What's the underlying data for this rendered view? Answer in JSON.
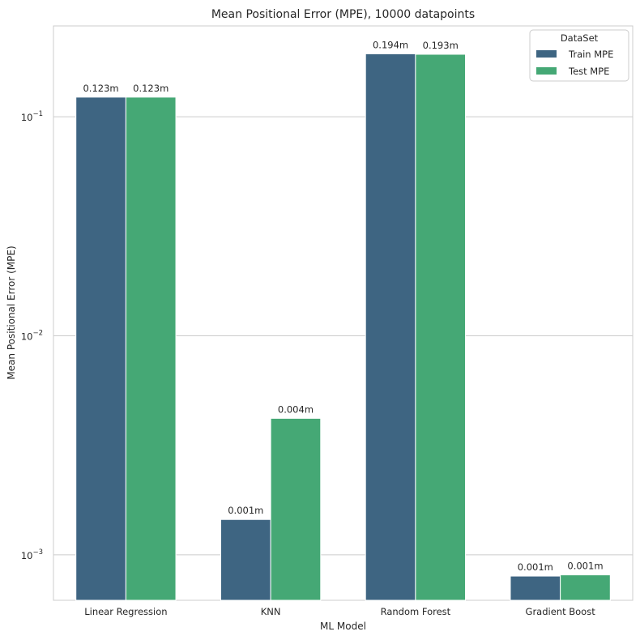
{
  "chart_data": {
    "type": "bar",
    "title": "Mean Positional Error (MPE), 10000 datapoints",
    "xlabel": "ML Model",
    "ylabel": "Mean Positional Error (MPE)",
    "categories": [
      "Linear Regression",
      "KNN",
      "Random Forest",
      "Gradient Boost"
    ],
    "series": [
      {
        "name": "Train MPE",
        "color": "#3e6582",
        "values": [
          0.123,
          0.00145,
          0.194,
          0.0008
        ],
        "labels": [
          "0.123m",
          "0.001m",
          "0.194m",
          "0.001m"
        ]
      },
      {
        "name": "Test MPE",
        "color": "#45a875",
        "values": [
          0.123,
          0.0042,
          0.193,
          0.00081
        ],
        "labels": [
          "0.123m",
          "0.004m",
          "0.193m",
          "0.001m"
        ]
      }
    ],
    "yscale": "log",
    "ylim": [
      0.00062,
      0.26
    ],
    "yticks": [
      {
        "value": 0.1,
        "base": "10",
        "exp": "−1"
      },
      {
        "value": 0.01,
        "base": "10",
        "exp": "−2"
      },
      {
        "value": 0.001,
        "base": "10",
        "exp": "−3"
      }
    ],
    "grid": "horizontal",
    "legend": {
      "title": "DataSet",
      "position": "top-right"
    }
  }
}
